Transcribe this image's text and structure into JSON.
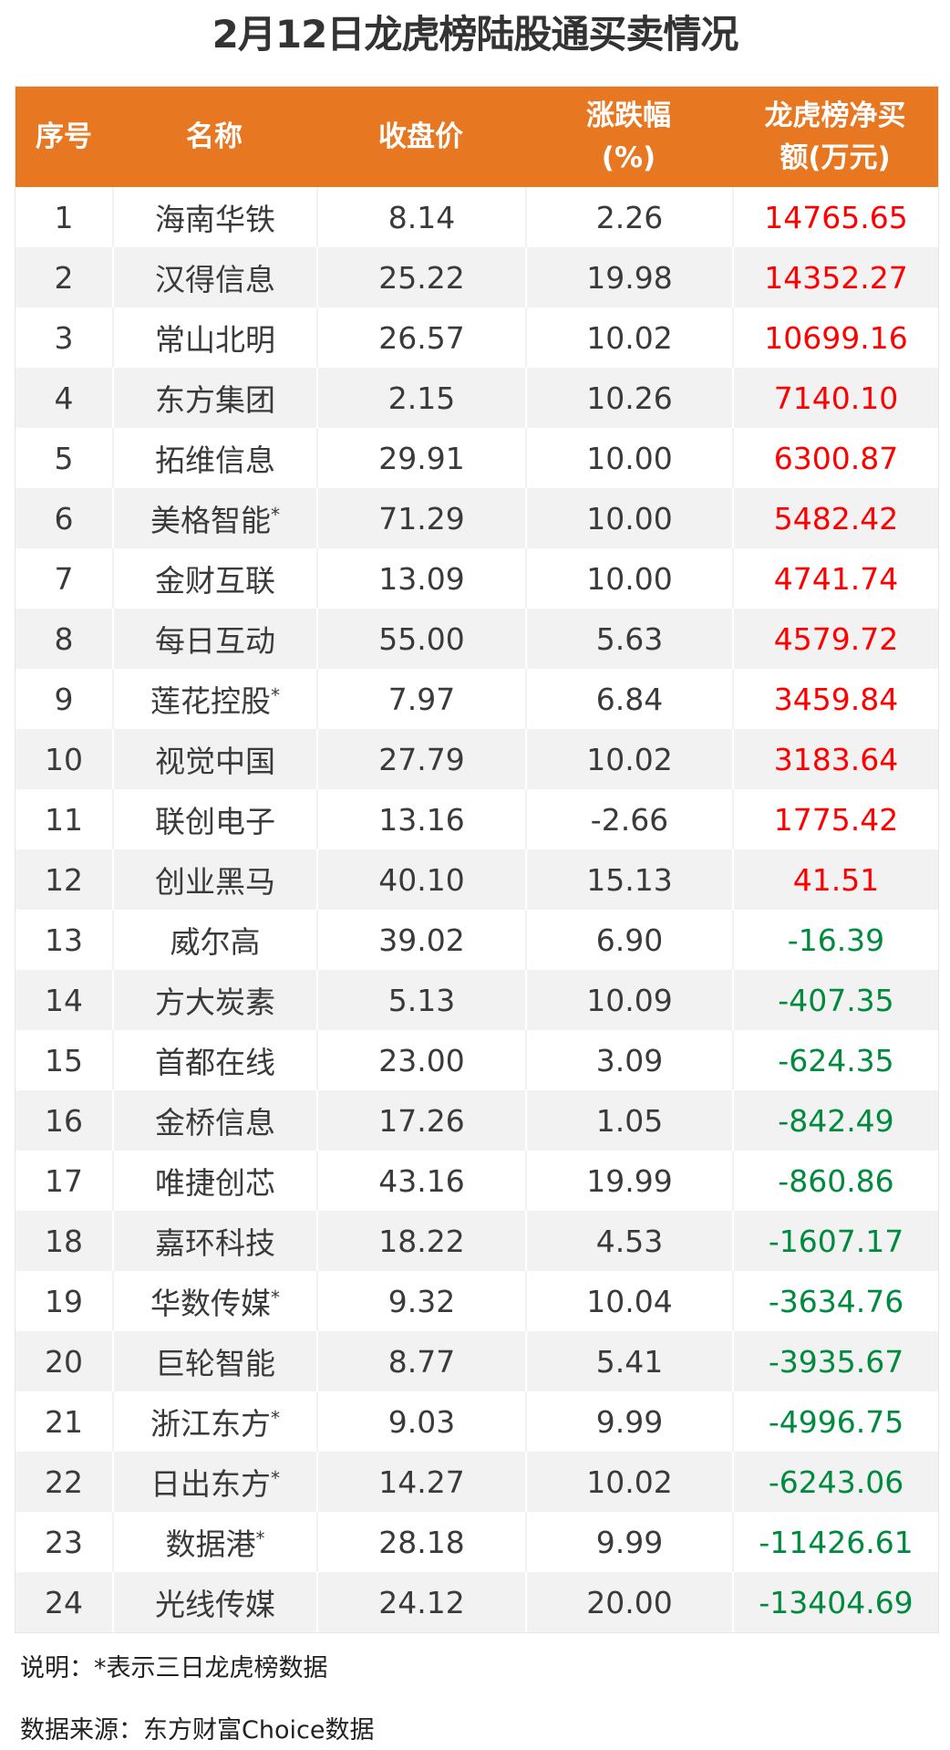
{
  "title": "2月12日龙虎榜陆股通买卖情况",
  "headers": {
    "index": "序号",
    "name": "名称",
    "close": "收盘价",
    "change_l1": "涨跌幅",
    "change_l2": "(%)",
    "net_l1": "龙虎榜净买",
    "net_l2": "额(万元)"
  },
  "colors": {
    "header_bg": "#E87722",
    "positive": "#FF0000",
    "negative": "#008A3E",
    "zebra": "#F2F2F2"
  },
  "rows": [
    {
      "index": "1",
      "name": "海南华铁",
      "star": "",
      "close": "8.14",
      "change": "2.26",
      "net": "14765.65"
    },
    {
      "index": "2",
      "name": "汉得信息",
      "star": "",
      "close": "25.22",
      "change": "19.98",
      "net": "14352.27"
    },
    {
      "index": "3",
      "name": "常山北明",
      "star": "",
      "close": "26.57",
      "change": "10.02",
      "net": "10699.16"
    },
    {
      "index": "4",
      "name": "东方集团",
      "star": "",
      "close": "2.15",
      "change": "10.26",
      "net": "7140.10"
    },
    {
      "index": "5",
      "name": "拓维信息",
      "star": "",
      "close": "29.91",
      "change": "10.00",
      "net": "6300.87"
    },
    {
      "index": "6",
      "name": "美格智能",
      "star": "*",
      "close": "71.29",
      "change": "10.00",
      "net": "5482.42"
    },
    {
      "index": "7",
      "name": "金财互联",
      "star": "",
      "close": "13.09",
      "change": "10.00",
      "net": "4741.74"
    },
    {
      "index": "8",
      "name": "每日互动",
      "star": "",
      "close": "55.00",
      "change": "5.63",
      "net": "4579.72"
    },
    {
      "index": "9",
      "name": "莲花控股",
      "star": "*",
      "close": "7.97",
      "change": "6.84",
      "net": "3459.84"
    },
    {
      "index": "10",
      "name": "视觉中国",
      "star": "",
      "close": "27.79",
      "change": "10.02",
      "net": "3183.64"
    },
    {
      "index": "11",
      "name": "联创电子",
      "star": "",
      "close": "13.16",
      "change": "-2.66",
      "net": "1775.42"
    },
    {
      "index": "12",
      "name": "创业黑马",
      "star": "",
      "close": "40.10",
      "change": "15.13",
      "net": "41.51"
    },
    {
      "index": "13",
      "name": "威尔高",
      "star": "",
      "close": "39.02",
      "change": "6.90",
      "net": "-16.39"
    },
    {
      "index": "14",
      "name": "方大炭素",
      "star": "",
      "close": "5.13",
      "change": "10.09",
      "net": "-407.35"
    },
    {
      "index": "15",
      "name": "首都在线",
      "star": "",
      "close": "23.00",
      "change": "3.09",
      "net": "-624.35"
    },
    {
      "index": "16",
      "name": "金桥信息",
      "star": "",
      "close": "17.26",
      "change": "1.05",
      "net": "-842.49"
    },
    {
      "index": "17",
      "name": "唯捷创芯",
      "star": "",
      "close": "43.16",
      "change": "19.99",
      "net": "-860.86"
    },
    {
      "index": "18",
      "name": "嘉环科技",
      "star": "",
      "close": "18.22",
      "change": "4.53",
      "net": "-1607.17"
    },
    {
      "index": "19",
      "name": "华数传媒",
      "star": "*",
      "close": "9.32",
      "change": "10.04",
      "net": "-3634.76"
    },
    {
      "index": "20",
      "name": "巨轮智能",
      "star": "",
      "close": "8.77",
      "change": "5.41",
      "net": "-3935.67"
    },
    {
      "index": "21",
      "name": "浙江东方",
      "star": "*",
      "close": "9.03",
      "change": "9.99",
      "net": "-4996.75"
    },
    {
      "index": "22",
      "name": "日出东方",
      "star": "*",
      "close": "14.27",
      "change": "10.02",
      "net": "-6243.06"
    },
    {
      "index": "23",
      "name": "数据港",
      "star": "*",
      "close": "28.18",
      "change": "9.99",
      "net": "-11426.61"
    },
    {
      "index": "24",
      "name": "光线传媒",
      "star": "",
      "close": "24.12",
      "change": "20.00",
      "net": "-13404.69"
    }
  ],
  "notes": {
    "explain": "说明：*表示三日龙虎榜数据",
    "source": "数据来源：东方财富Choice数据"
  }
}
